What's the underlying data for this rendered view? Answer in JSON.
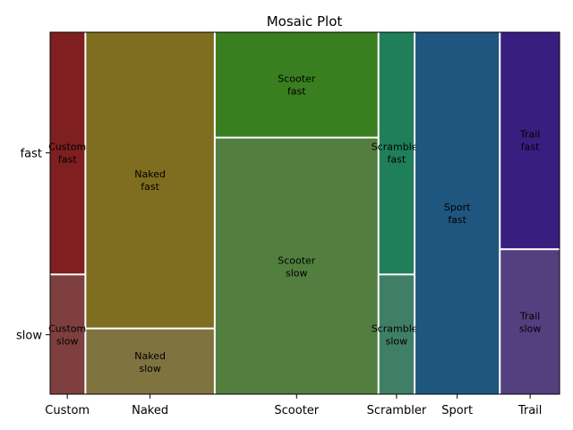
{
  "chart_data": {
    "type": "mosaic",
    "title": "Mosaic Plot",
    "xlabel": "",
    "ylabel": "",
    "categories": [
      "Custom",
      "Naked",
      "Scooter",
      "Scrambler",
      "Sport",
      "Trail"
    ],
    "y_levels": [
      "slow",
      "fast"
    ],
    "widths": [
      0.07,
      0.26,
      0.33,
      0.07,
      0.17,
      0.12
    ],
    "proportions": [
      {
        "category": "Custom",
        "slow": 0.33,
        "fast": 0.67
      },
      {
        "category": "Naked",
        "slow": 0.18,
        "fast": 0.82
      },
      {
        "category": "Scooter",
        "slow": 0.71,
        "fast": 0.29
      },
      {
        "category": "Scrambler",
        "slow": 0.33,
        "fast": 0.67
      },
      {
        "category": "Sport",
        "slow": 0.0,
        "fast": 1.0
      },
      {
        "category": "Trail",
        "slow": 0.4,
        "fast": 0.6
      }
    ],
    "tiles": [
      {
        "label": "Custom\nslow",
        "color": "#7f3f3f"
      },
      {
        "label": "Custom\nfast",
        "color": "#7f1f1f"
      },
      {
        "label": "Naked\nslow",
        "color": "#7f733f"
      },
      {
        "label": "Naked\nfast",
        "color": "#7f6e1f"
      },
      {
        "label": "Scooter\nslow",
        "color": "#527f3f"
      },
      {
        "label": "Scooter\nfast",
        "color": "#3a7f1f"
      },
      {
        "label": "Scrambler\nslow",
        "color": "#3f7f66"
      },
      {
        "label": "Scrambler\nfast",
        "color": "#1f7f5a"
      },
      {
        "label": "Sport\nslow",
        "color": "#3f5e7f"
      },
      {
        "label": "Sport\nfast",
        "color": "#1f567f"
      },
      {
        "label": "Trail\nslow",
        "color": "#543f7f"
      },
      {
        "label": "Trail\nfast",
        "color": "#381f7f"
      }
    ],
    "grid": false,
    "legend": "none"
  }
}
